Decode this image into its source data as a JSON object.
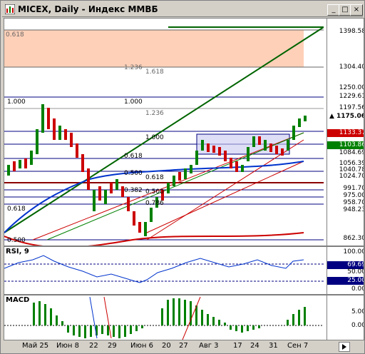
{
  "window": {
    "title": "MICEX, Daily - Индекс ММВБ",
    "buttons": {
      "minimize": "_",
      "maximize": "□",
      "close": "×"
    }
  },
  "price_axis": [
    {
      "label": "1398.58",
      "bg": "#ffffff"
    },
    {
      "label": "1304.40",
      "bg": "#ffffff"
    },
    {
      "label": "1250.00",
      "bg": "#ffffff"
    },
    {
      "label": "1229.61",
      "bg": "#ffffff"
    },
    {
      "label": "1197.56",
      "bg": "#ffffff"
    },
    {
      "label": "▲ 1175.06",
      "bg": "#ffffff"
    },
    {
      "label": "1133.37",
      "bg": "#cc0000"
    },
    {
      "label": "1103.86",
      "bg": "#008000"
    },
    {
      "label": "1084.69",
      "bg": "#ffffff"
    },
    {
      "label": "1056.39",
      "bg": "#ffffff"
    },
    {
      "label": "1040.78",
      "bg": "#ffffff"
    },
    {
      "label": "1024.70",
      "bg": "#ffffff"
    },
    {
      "label": "991.70",
      "bg": "#ffffff"
    },
    {
      "label": "975.00",
      "bg": "#ffffff"
    },
    {
      "label": "958.70",
      "bg": "#ffffff"
    },
    {
      "label": "948.23",
      "bg": "#ffffff"
    },
    {
      "label": "862.30",
      "bg": "#ffffff"
    }
  ],
  "fib_labels": [
    "0.618",
    "1.236",
    "1.618",
    "1.000",
    "1.000",
    "1.236",
    "1.000",
    "0.618",
    "0.500",
    "0.618",
    "0.382",
    "0.500",
    "0.786",
    "0.618",
    "0.500"
  ],
  "rsi": {
    "name": "RSI, 9",
    "levels": [
      "100.00",
      "69.69",
      "50.00",
      "25.00",
      "0.00"
    ]
  },
  "macd": {
    "name": "MACD",
    "levels": [
      "5.00",
      "0.00"
    ]
  },
  "x_axis": [
    "Май 25",
    "Июн 8",
    "22",
    "29",
    "Июн 6",
    "20",
    "27",
    "Авг 3",
    "17",
    "24",
    "31",
    "Сен 7"
  ],
  "colors": {
    "up_candle": "#008000",
    "down_candle": "#cc0000",
    "ma_blue": "#0033cc",
    "zone_fill": "#ffd0b8"
  }
}
